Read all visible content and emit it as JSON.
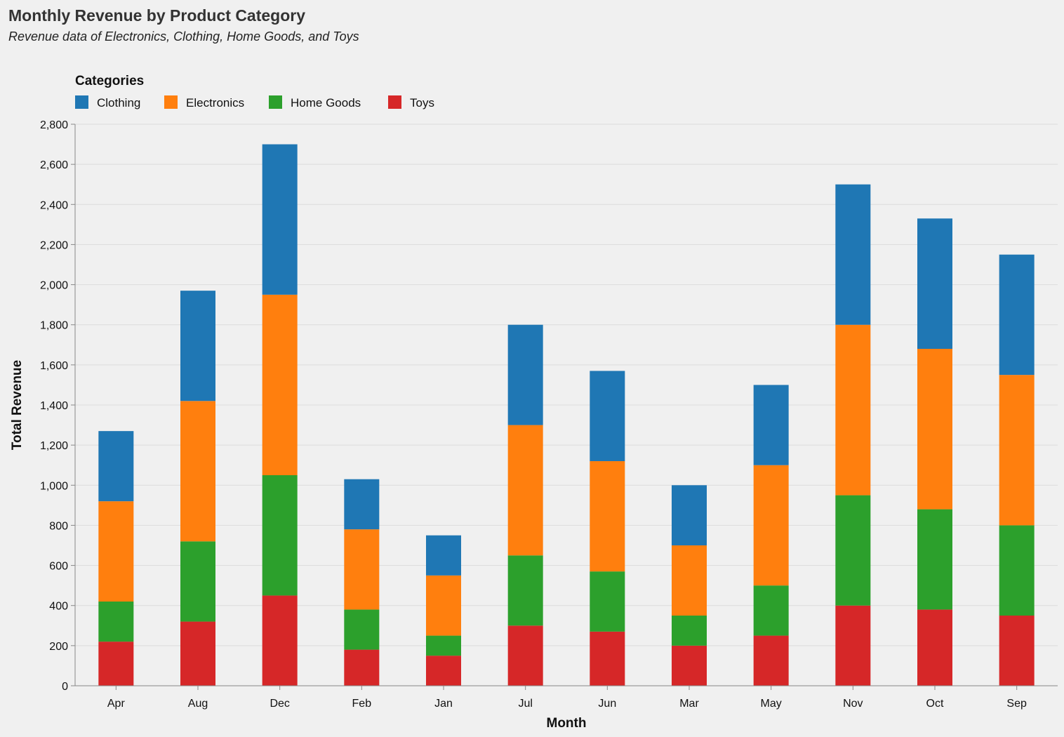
{
  "chart_data": {
    "type": "bar",
    "stacked": true,
    "title": "Monthly Revenue by Product Category",
    "subtitle": "Revenue data of Electronics, Clothing, Home Goods, and Toys",
    "xlabel": "Month",
    "ylabel": "Total Revenue",
    "ylim": [
      0,
      2800
    ],
    "yticks": [
      0,
      200,
      400,
      600,
      800,
      1000,
      1200,
      1400,
      1600,
      1800,
      2000,
      2200,
      2400,
      2600,
      2800
    ],
    "ytick_labels": [
      "0",
      "200",
      "400",
      "600",
      "800",
      "1,000",
      "1,200",
      "1,400",
      "1,600",
      "1,800",
      "2,000",
      "2,200",
      "2,400",
      "2,600",
      "2,800"
    ],
    "grid": true,
    "legend": {
      "title": "Categories",
      "position": "top-left"
    },
    "categories": [
      "Apr",
      "Aug",
      "Dec",
      "Feb",
      "Jan",
      "Jul",
      "Jun",
      "Mar",
      "May",
      "Nov",
      "Oct",
      "Sep"
    ],
    "series": [
      {
        "name": "Toys",
        "color": "#d62728",
        "values": [
          220,
          320,
          450,
          180,
          150,
          300,
          270,
          200,
          250,
          400,
          380,
          350
        ]
      },
      {
        "name": "Home Goods",
        "color": "#2ca02c",
        "values": [
          200,
          400,
          600,
          200,
          100,
          350,
          300,
          150,
          250,
          550,
          500,
          450
        ]
      },
      {
        "name": "Electronics",
        "color": "#ff7f0e",
        "values": [
          500,
          700,
          900,
          400,
          300,
          650,
          550,
          350,
          600,
          850,
          800,
          750
        ]
      },
      {
        "name": "Clothing",
        "color": "#1f77b4",
        "values": [
          350,
          550,
          750,
          250,
          200,
          500,
          450,
          300,
          400,
          700,
          650,
          600
        ]
      }
    ],
    "legend_order": [
      "Clothing",
      "Electronics",
      "Home Goods",
      "Toys"
    ]
  }
}
